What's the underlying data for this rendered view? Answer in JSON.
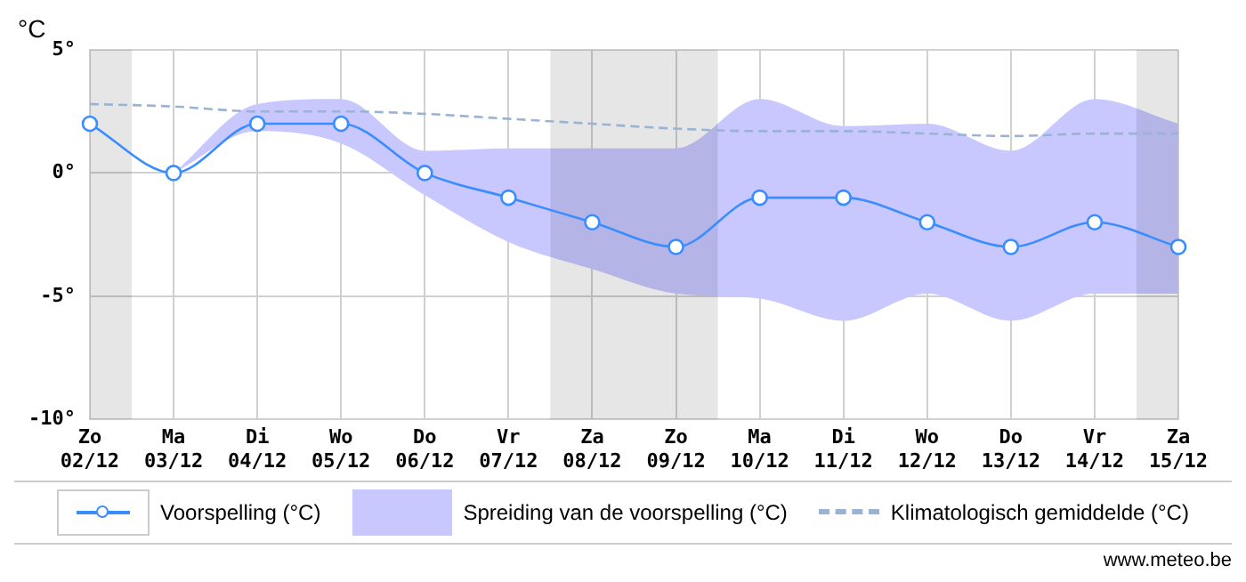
{
  "chart_data": {
    "type": "line",
    "ylabel": "°C",
    "categories": [
      "Zo 02/12",
      "Ma 03/12",
      "Di 04/12",
      "Wo 05/12",
      "Do 06/12",
      "Vr 07/12",
      "Za 08/12",
      "Zo 09/12",
      "Ma 10/12",
      "Di 11/12",
      "Wo 12/12",
      "Do 13/12",
      "Vr 14/12",
      "Za 15/12"
    ],
    "ylim": [
      -10,
      5
    ],
    "yticks": [
      {
        "value": -10,
        "label": "-10°"
      },
      {
        "value": -5,
        "label": "-5°"
      },
      {
        "value": 0,
        "label": "0°"
      },
      {
        "value": 5,
        "label": "5°"
      }
    ],
    "grid": true,
    "legend": "bottom",
    "series": [
      {
        "name": "Voorspelling (°C)",
        "type": "line",
        "color": "#3a8dff",
        "marker": "circle",
        "line_style": "solid",
        "values": [
          2,
          0,
          2,
          2,
          0,
          -1,
          -2,
          -3,
          -1,
          -1,
          -2,
          -3,
          -2,
          -3
        ]
      },
      {
        "name": "Spreiding van de voorspelling (°C)",
        "type": "area",
        "color": "#c8c8ff",
        "values": [
          null,
          null,
          null,
          null,
          null,
          null,
          null,
          null,
          null,
          null,
          null,
          null,
          null,
          null
        ],
        "lower": [
          null,
          0,
          1.7,
          1.2,
          -0.9,
          -2.8,
          -3.9,
          -4.9,
          -5.1,
          -6,
          -4.9,
          -6,
          -4.9,
          -4.9
        ],
        "upper": [
          null,
          0,
          2.8,
          3,
          0.9,
          1,
          1,
          1,
          3,
          1.9,
          2,
          0.9,
          3,
          2
        ]
      },
      {
        "name": "Klimatologisch gemiddelde (°C)",
        "type": "line",
        "color": "#9ab3d5",
        "marker": "none",
        "line_style": "dashed",
        "values": [
          2.8,
          2.7,
          2.5,
          2.5,
          2.4,
          2.2,
          2,
          1.8,
          1.7,
          1.7,
          1.6,
          1.5,
          1.6,
          1.6
        ]
      }
    ],
    "bands": [
      {
        "axis": "x",
        "from": "Zo 02/12",
        "to": "Zo 02/12",
        "color": "#e6e6e6"
      },
      {
        "axis": "x",
        "from": "Za 08/12",
        "to": "Zo 09/12",
        "color": "#e6e6e6"
      },
      {
        "axis": "x",
        "from": "Za 15/12",
        "to": "Za 15/12",
        "color": "#e6e6e6"
      }
    ],
    "annotations": [
      "www.meteo.be"
    ]
  }
}
